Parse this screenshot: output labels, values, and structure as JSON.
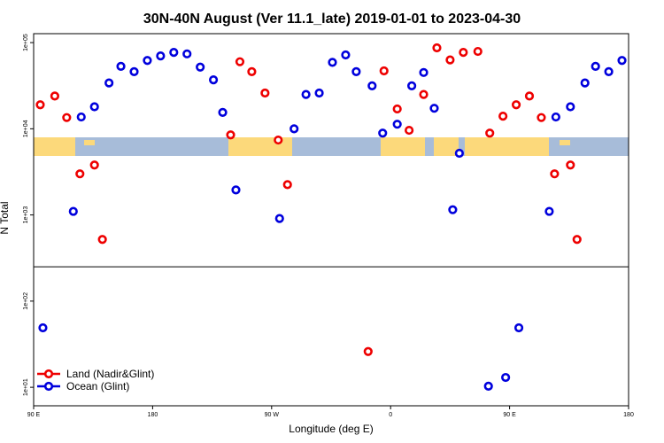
{
  "chart_data": {
    "type": "scatter",
    "title": "30N-40N August (Ver 11.1_late)   2019-01-01 to 2023-04-30",
    "x_label": "Longitude (deg E)",
    "y_label": "N Total",
    "log_y": true,
    "xlim": [
      90,
      540
    ],
    "xticks": [
      {
        "value": 90,
        "label": "90 E"
      },
      180,
      {
        "value": 270,
        "label": "90 W"
      },
      {
        "value": 360,
        "label": "0"
      },
      {
        "value": 450,
        "label": "90 E"
      },
      {
        "value": 540,
        "label": "180"
      }
    ],
    "ylim": [
      6.1,
      127000
    ],
    "yticks": [
      {
        "value": 10,
        "label": "1e+01"
      },
      {
        "value": 100,
        "label": "1e+02"
      },
      {
        "value": 1000,
        "label": "1e+03"
      },
      {
        "value": 10000,
        "label": "1e+04"
      },
      {
        "value": 100000,
        "label": "1e+05"
      }
    ],
    "hline": 250,
    "legend": "bottom-left",
    "series": [
      {
        "name": "Land (Nadir&Glint)",
        "color": "#ee0000",
        "x": [
          95,
          106,
          115,
          125,
          136,
          142,
          239,
          246,
          255,
          265,
          275,
          282,
          343,
          355,
          365,
          374,
          385,
          395,
          405,
          415,
          426,
          435,
          445,
          455,
          465,
          474,
          484,
          496,
          501
        ],
        "values": [
          19000,
          24000,
          13500,
          3000,
          3800,
          520,
          8500,
          60000,
          46000,
          26000,
          7400,
          2250,
          26,
          47000,
          17000,
          9600,
          25000,
          87000,
          63000,
          77000,
          79000,
          8900,
          14000,
          19000,
          24000,
          13500,
          3000,
          3800,
          520
        ]
      },
      {
        "name": "Ocean (Glint)",
        "color": "#0000dd",
        "x": [
          97,
          120,
          126,
          136,
          147,
          156,
          166,
          176,
          186,
          196,
          206,
          216,
          226,
          233,
          243,
          276,
          287,
          296,
          306,
          316,
          326,
          334,
          346,
          354,
          365,
          376,
          385,
          393,
          407,
          412,
          434,
          447,
          457,
          480,
          485,
          496,
          507,
          515,
          525,
          535
        ],
        "values": [
          49,
          1100,
          13700,
          18000,
          34000,
          53000,
          46000,
          62000,
          70000,
          77000,
          74000,
          52000,
          37000,
          15500,
          1950,
          910,
          10000,
          25000,
          26000,
          59000,
          72000,
          46000,
          31500,
          8900,
          11300,
          31500,
          45000,
          17300,
          1150,
          5200,
          10.3,
          13,
          49,
          1100,
          13700,
          18000,
          34000,
          53000,
          46000,
          62000
        ]
      }
    ]
  }
}
